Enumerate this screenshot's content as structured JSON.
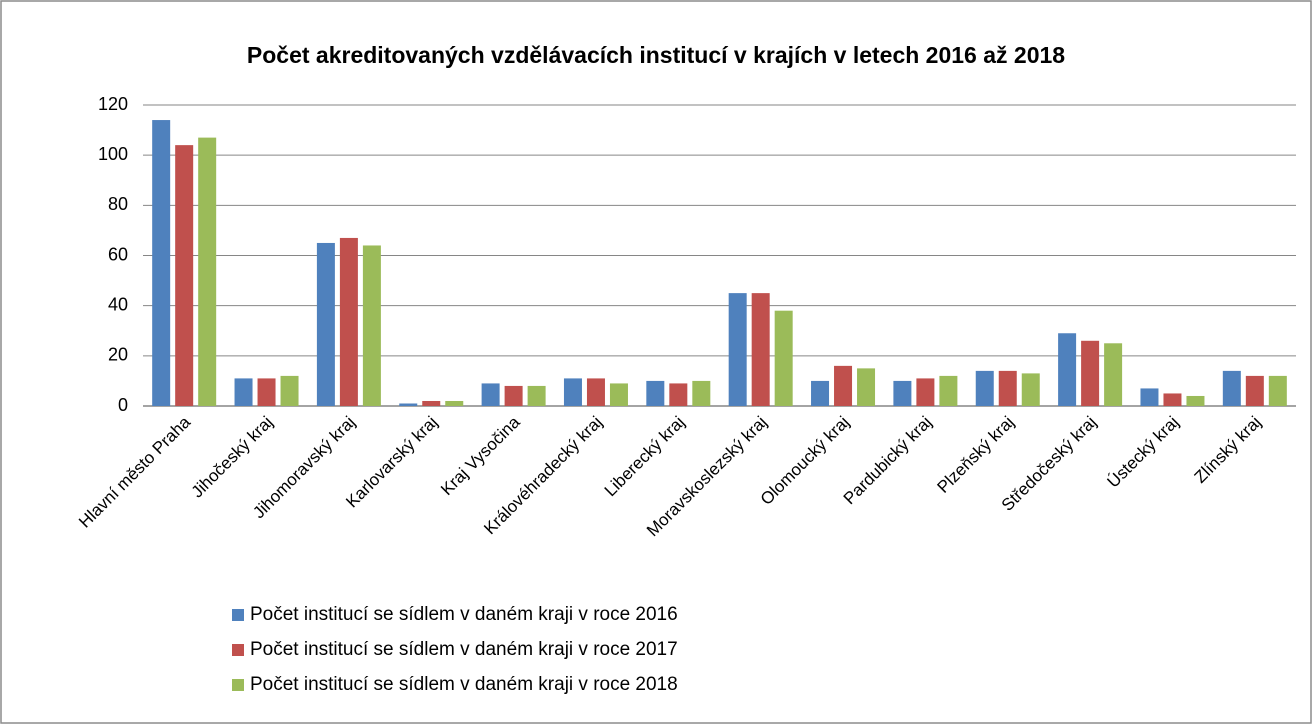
{
  "chart_data": {
    "type": "bar",
    "title": "Počet akreditovaných vzdělávacích institucí v krajích v letech 2016 až 2018",
    "categories": [
      "Hlavní město Praha",
      "Jihočeský kraj",
      "Jihomoravský kraj",
      "Karlovarský kraj",
      "Kraj Vysočina",
      "Královéhradecký kraj",
      "Liberecký kraj",
      "Moravskoslezský kraj",
      "Olomoucký kraj",
      "Pardubický kraj",
      "Plzeňský kraj",
      "Středočeský kraj",
      "Ústecký kraj",
      "Zlínský kraj"
    ],
    "series": [
      {
        "name": "Počet institucí se sídlem v daném kraji v roce 2016",
        "color": "#4f81bd",
        "values": [
          114,
          11,
          65,
          1,
          9,
          11,
          10,
          45,
          10,
          10,
          14,
          29,
          7,
          14
        ]
      },
      {
        "name": "Počet institucí se sídlem v daném kraji v roce 2017",
        "color": "#c0504d",
        "values": [
          104,
          11,
          67,
          2,
          8,
          11,
          9,
          45,
          16,
          11,
          14,
          26,
          5,
          12
        ]
      },
      {
        "name": "Počet institucí se sídlem v daném kraji v roce 2018",
        "color": "#9bbb59",
        "values": [
          107,
          12,
          64,
          2,
          8,
          9,
          10,
          38,
          15,
          12,
          13,
          25,
          4,
          12
        ]
      }
    ],
    "ylim": [
      0,
      120
    ],
    "yticks": [
      0,
      20,
      40,
      60,
      80,
      100,
      120
    ],
    "grid": true,
    "legend": "bottom"
  }
}
